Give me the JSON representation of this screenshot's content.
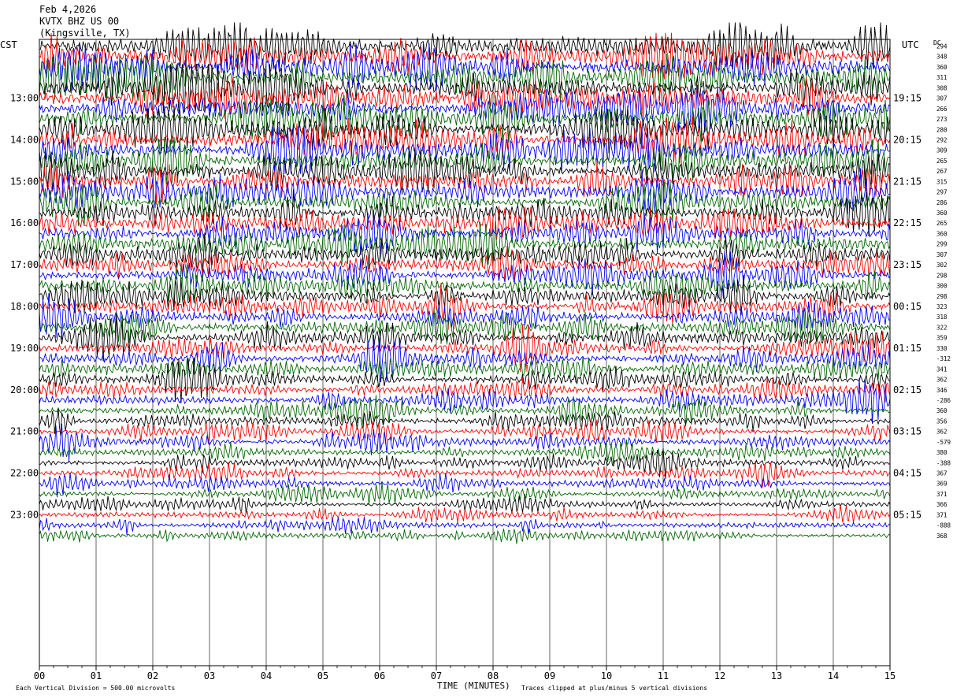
{
  "header": {
    "date": "Feb 4,2026",
    "station": "KVTX BHZ US 00",
    "location": "(Kingsville, TX)"
  },
  "chart_data": {
    "type": "line",
    "description_kind": "helicorder",
    "left_timezone": "CST",
    "right_timezone": "UTC",
    "dc_header": "DC",
    "xlabel": "TIME (MINUTES)",
    "x_ticks": [
      "00",
      "01",
      "02",
      "03",
      "04",
      "05",
      "06",
      "07",
      "08",
      "09",
      "10",
      "11",
      "12",
      "13",
      "14",
      "15"
    ],
    "xlim": [
      0,
      15
    ],
    "rows_per_hour": 4,
    "row_count": 48,
    "left_hour_labels": [
      "13:00",
      "14:00",
      "15:00",
      "16:00",
      "17:00",
      "18:00",
      "19:00",
      "20:00",
      "21:00",
      "22:00",
      "23:00"
    ],
    "right_hour_labels": [
      "19:15",
      "20:15",
      "21:15",
      "22:15",
      "23:15",
      "00:15",
      "01:15",
      "02:15",
      "03:15",
      "04:15",
      "05:15"
    ],
    "trace_colors": [
      "#000000",
      "#ff0000",
      "#0000ff",
      "#006600"
    ],
    "dc_values": [
      "294",
      "348",
      "360",
      "311",
      "308",
      "307",
      "266",
      "273",
      "280",
      "292",
      "309",
      "265",
      "267",
      "315",
      "297",
      "286",
      "360",
      "265",
      "360",
      "299",
      "307",
      "302",
      "298",
      "300",
      "298",
      "323",
      "318",
      "322",
      "359",
      "330",
      "-312",
      "341",
      "362",
      "346",
      "-286",
      "360",
      "356",
      "362",
      "-579",
      "380",
      "-388",
      "367",
      "369",
      "371",
      "366",
      "371",
      "-888",
      "368"
    ],
    "footer_left": "Each Vertical Division =  500.00 microvolts",
    "footer_right": "Traces clipped at plus/minus 5 vertical divisions",
    "clip_note": "Traces clipped at plus/minus 5 vertical divisions"
  }
}
